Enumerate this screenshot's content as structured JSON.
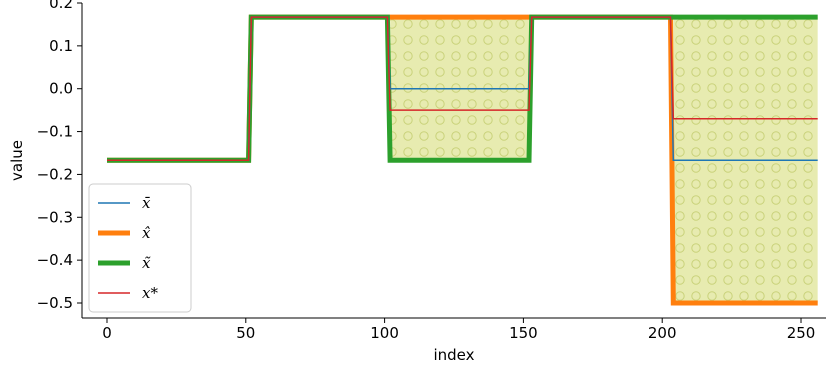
{
  "chart_data": {
    "type": "line",
    "xlabel": "index",
    "ylabel": "value",
    "xlim": [
      -9,
      259
    ],
    "ylim": [
      -0.535,
      0.2
    ],
    "xticks": [
      0,
      50,
      100,
      150,
      200,
      250
    ],
    "yticks": [
      -0.5,
      -0.4,
      -0.3,
      -0.2,
      -0.1,
      0.0,
      0.1,
      0.2
    ],
    "ytick_labels": [
      "−0.5",
      "−0.4",
      "−0.3",
      "−0.2",
      "−0.1",
      "0.0",
      "0.1",
      "0.2"
    ],
    "grid": false,
    "legend_position": "lower-left",
    "shaded_regions": [
      {
        "x": [
          102,
          152
        ],
        "y": [
          -0.167,
          0.167
        ],
        "color": "#e7ebb0",
        "pattern": "dots"
      },
      {
        "x": [
          204,
          256
        ],
        "y": [
          -0.5,
          0.167
        ],
        "color": "#e7ebb0",
        "pattern": "dots"
      }
    ],
    "series": [
      {
        "name": "x̄",
        "color": "#1f77b4",
        "width": 1.5,
        "x": [
          0,
          51,
          52,
          101,
          102,
          152,
          153,
          203,
          204,
          256
        ],
        "y": [
          -0.167,
          -0.167,
          0.167,
          0.167,
          0.0,
          0.0,
          0.167,
          0.167,
          -0.167,
          -0.167
        ]
      },
      {
        "name": "x̂",
        "color": "#ff7f0e",
        "width": 5,
        "x": [
          0,
          51,
          52,
          101,
          102,
          152,
          153,
          203,
          204,
          256
        ],
        "y": [
          -0.167,
          -0.167,
          0.167,
          0.167,
          0.167,
          0.167,
          0.167,
          0.167,
          -0.5,
          -0.5
        ]
      },
      {
        "name": "x̃",
        "color": "#2ca02c",
        "width": 5,
        "x": [
          0,
          51,
          52,
          101,
          102,
          152,
          153,
          203,
          204,
          256
        ],
        "y": [
          -0.167,
          -0.167,
          0.167,
          0.167,
          -0.167,
          -0.167,
          0.167,
          0.167,
          0.167,
          0.167
        ]
      },
      {
        "name": "x*",
        "color": "#d62728",
        "width": 1.5,
        "x": [
          0,
          51,
          52,
          101,
          102,
          152,
          153,
          203,
          204,
          256
        ],
        "y": [
          -0.167,
          -0.167,
          0.167,
          0.167,
          -0.05,
          -0.05,
          0.167,
          0.167,
          -0.07,
          -0.07
        ]
      }
    ]
  }
}
